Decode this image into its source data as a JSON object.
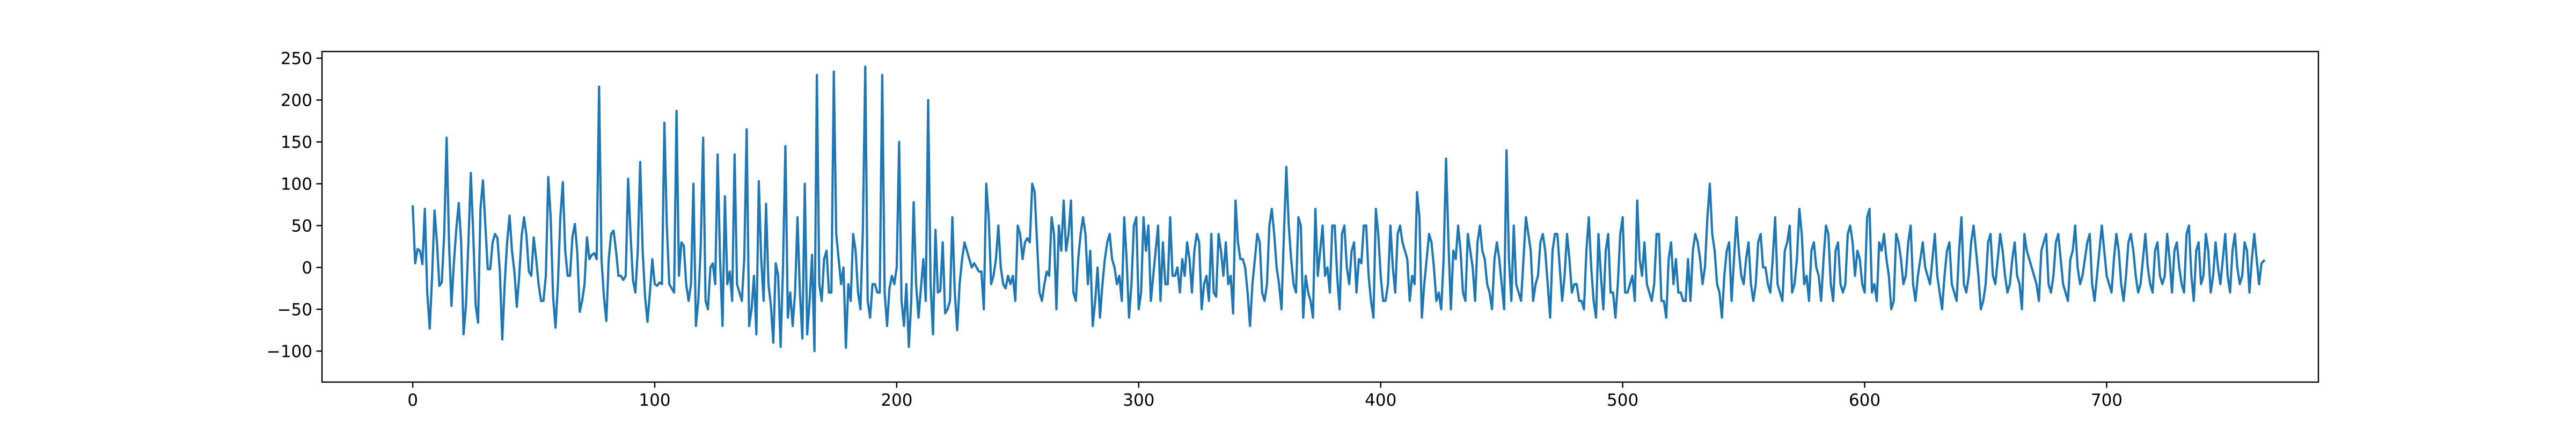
{
  "chart_data": {
    "type": "line",
    "title": "",
    "xlabel": "",
    "ylabel": "",
    "xlim": [
      -37.5,
      787.5
    ],
    "ylim": [
      -137,
      258
    ],
    "x_ticks": [
      0,
      100,
      200,
      300,
      400,
      500,
      600,
      700
    ],
    "y_ticks": [
      -100,
      -50,
      0,
      50,
      100,
      150,
      200,
      250
    ],
    "grid": false,
    "legend": "none",
    "line_color": "#1f77b4",
    "series": [
      {
        "x_start": 0,
        "x_step": 1,
        "values": [
          73,
          5,
          22,
          20,
          4,
          70,
          -30,
          -73,
          -10,
          68,
          30,
          -22,
          -18,
          40,
          155,
          30,
          -46,
          5,
          46,
          77,
          30,
          -80,
          -45,
          30,
          113,
          40,
          -45,
          -66,
          70,
          104,
          50,
          -2,
          -2,
          30,
          40,
          35,
          -5,
          -86,
          -20,
          30,
          62,
          20,
          -5,
          -47,
          -10,
          38,
          60,
          38,
          -5,
          -10,
          36,
          10,
          -20,
          -40,
          -40,
          -10,
          108,
          60,
          -35,
          -72,
          -20,
          60,
          102,
          20,
          -10,
          -10,
          37,
          52,
          18,
          -53,
          -40,
          -20,
          36,
          10,
          15,
          17,
          10,
          216,
          10,
          -35,
          -64,
          10,
          40,
          44,
          20,
          -10,
          -10,
          -15,
          -10,
          106,
          40,
          -15,
          -30,
          20,
          126,
          20,
          -35,
          -65,
          -30,
          10,
          -20,
          -22,
          -18,
          -20,
          173,
          50,
          -20,
          -25,
          -30,
          187,
          -10,
          30,
          26,
          -20,
          -40,
          -20,
          100,
          -70,
          -40,
          25,
          155,
          -40,
          -50,
          0,
          5,
          -20,
          135,
          10,
          -70,
          85,
          -20,
          -5,
          -40,
          135,
          -20,
          -30,
          -40,
          10,
          165,
          -70,
          -50,
          -10,
          -80,
          103,
          10,
          -40,
          76,
          -20,
          -45,
          -90,
          5,
          -10,
          -95,
          0,
          145,
          -60,
          -30,
          -70,
          -30,
          60,
          -30,
          -85,
          100,
          -80,
          -40,
          15,
          -100,
          230,
          -20,
          -40,
          10,
          20,
          -30,
          -30,
          234,
          40,
          10,
          -20,
          0,
          -96,
          -20,
          -40,
          40,
          20,
          -30,
          -50,
          45,
          240,
          -40,
          -60,
          -20,
          -20,
          -30,
          -30,
          230,
          -30,
          -70,
          -25,
          -10,
          -20,
          0,
          150,
          -40,
          -70,
          -20,
          -95,
          -40,
          78,
          -20,
          -60,
          -25,
          10,
          -40,
          200,
          -20,
          -80,
          45,
          -30,
          -28,
          30,
          -55,
          -50,
          -40,
          60,
          -30,
          -75,
          -20,
          10,
          30,
          20,
          10,
          0,
          5,
          0,
          -5,
          -5,
          -50,
          100,
          60,
          -20,
          -10,
          10,
          50,
          0,
          -20,
          -25,
          -10,
          -20,
          -10,
          -40,
          50,
          40,
          10,
          30,
          35,
          30,
          100,
          90,
          30,
          -30,
          -40,
          -20,
          -5,
          -10,
          60,
          40,
          -50,
          50,
          20,
          80,
          20,
          40,
          80,
          -30,
          -40,
          10,
          40,
          60,
          40,
          -20,
          20,
          -70,
          -40,
          0,
          -60,
          -20,
          10,
          30,
          40,
          10,
          0,
          -20,
          -10,
          -40,
          60,
          10,
          -60,
          -20,
          50,
          60,
          -50,
          -30,
          60,
          20,
          50,
          -40,
          -10,
          20,
          50,
          -40,
          30,
          -20,
          -20,
          60,
          -10,
          -10,
          0,
          -30,
          10,
          -10,
          30,
          10,
          -30,
          20,
          40,
          30,
          -50,
          -20,
          -10,
          -40,
          40,
          -30,
          -35,
          40,
          20,
          -10,
          30,
          -20,
          -10,
          -55,
          80,
          30,
          10,
          10,
          0,
          -30,
          -70,
          -20,
          10,
          40,
          30,
          -30,
          -40,
          -20,
          50,
          70,
          40,
          0,
          -20,
          -50,
          40,
          120,
          50,
          10,
          -20,
          -30,
          60,
          50,
          -60,
          -10,
          -30,
          -40,
          -60,
          70,
          -10,
          20,
          50,
          -10,
          0,
          -30,
          50,
          50,
          -10,
          -50,
          40,
          50,
          0,
          -20,
          20,
          30,
          -30,
          10,
          5,
          50,
          50,
          -10,
          -40,
          -60,
          70,
          40,
          -10,
          -40,
          -40,
          -20,
          50,
          0,
          -30,
          40,
          50,
          30,
          20,
          10,
          -40,
          -10,
          -20,
          90,
          60,
          -60,
          -20,
          10,
          40,
          30,
          0,
          -40,
          -30,
          -50,
          10,
          130,
          30,
          -50,
          20,
          10,
          50,
          20,
          -30,
          -40,
          40,
          20,
          0,
          -40,
          30,
          50,
          20,
          10,
          -20,
          -30,
          -50,
          10,
          30,
          10,
          -20,
          -50,
          140,
          10,
          -40,
          50,
          -20,
          -30,
          -40,
          10,
          60,
          40,
          20,
          -40,
          -20,
          -10,
          30,
          40,
          20,
          -20,
          -60,
          20,
          40,
          40,
          0,
          -40,
          -10,
          40,
          10,
          -30,
          -20,
          -20,
          -40,
          -40,
          -50,
          20,
          60,
          0,
          -40,
          -60,
          40,
          -10,
          -50,
          20,
          40,
          -30,
          -30,
          -60,
          -20,
          40,
          60,
          -30,
          -30,
          -20,
          -10,
          -40,
          80,
          10,
          -10,
          30,
          -20,
          -30,
          -40,
          -20,
          40,
          40,
          -40,
          -40,
          -60,
          10,
          30,
          -20,
          10,
          -30,
          -30,
          -40,
          -40,
          10,
          -40,
          20,
          40,
          30,
          10,
          -20,
          0,
          60,
          100,
          40,
          20,
          -20,
          -30,
          -60,
          -10,
          20,
          30,
          -40,
          10,
          60,
          20,
          -10,
          -20,
          10,
          30,
          -20,
          -40,
          -20,
          30,
          40,
          0,
          0,
          -20,
          -30,
          10,
          60,
          -20,
          -30,
          -40,
          20,
          30,
          50,
          -30,
          -20,
          10,
          70,
          40,
          -20,
          -10,
          -40,
          20,
          30,
          0,
          -10,
          -40,
          10,
          50,
          40,
          -20,
          -40,
          20,
          30,
          -20,
          -30,
          -20,
          40,
          50,
          30,
          -10,
          20,
          10,
          -20,
          -30,
          60,
          70,
          -30,
          -20,
          -40,
          30,
          20,
          40,
          10,
          -10,
          -50,
          -40,
          40,
          30,
          10,
          -20,
          -10,
          30,
          50,
          -20,
          -40,
          -10,
          10,
          30,
          0,
          -10,
          -20,
          10,
          40,
          -10,
          -30,
          -50,
          -10,
          20,
          30,
          -20,
          -30,
          -40,
          20,
          60,
          -20,
          -30,
          -10,
          30,
          50,
          20,
          -10,
          -50,
          -40,
          -20,
          30,
          40,
          -10,
          -20,
          10,
          40,
          20,
          -10,
          -30,
          -20,
          10,
          30,
          -10,
          -20,
          -50,
          40,
          20,
          10,
          0,
          -10,
          -20,
          -40,
          20,
          30,
          40,
          -20,
          -30,
          -10,
          30,
          40,
          10,
          -20,
          -30,
          -40,
          10,
          20,
          50,
          0,
          -20,
          -10,
          10,
          30,
          40,
          -20,
          -40,
          -10,
          20,
          50,
          20,
          -10,
          -20,
          -30,
          10,
          40,
          20,
          -20,
          -40,
          -10,
          30,
          40,
          20,
          -10,
          -30,
          -20,
          10,
          40,
          0,
          -20,
          -30,
          20,
          30,
          -10,
          -20,
          -10,
          40,
          10,
          -30,
          20,
          30,
          0,
          -20,
          -30,
          40,
          50,
          -10,
          -40,
          20,
          30,
          -20,
          -10,
          40,
          20,
          -30,
          -10,
          30,
          0,
          -20,
          10,
          40,
          -10,
          -30,
          20,
          40,
          0,
          -20,
          -10,
          30,
          20,
          -30,
          10,
          40,
          10,
          -20,
          5,
          8
        ]
      }
    ]
  }
}
